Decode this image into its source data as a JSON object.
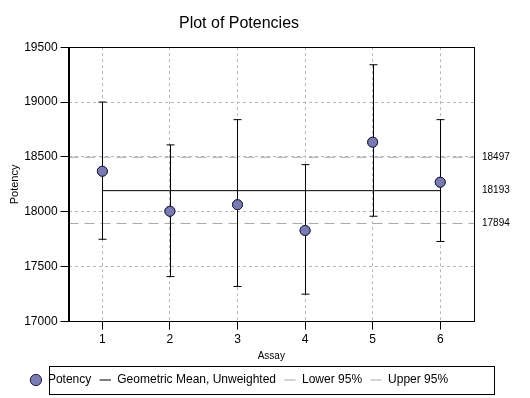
{
  "chart_data": {
    "type": "scatter",
    "title": "Plot of Potencies",
    "x_label": "Assay",
    "y_label": "Potency",
    "x": [
      1,
      2,
      3,
      4,
      5,
      6
    ],
    "series": [
      {
        "name": "Potency",
        "color": "#7b7bb4",
        "marker": "circle",
        "values": [
          18370,
          18005,
          18065,
          17830,
          18635,
          18270
        ],
        "error_bars": {
          "lower": [
            17750,
            17410,
            17320,
            17250,
            17960,
            17730
          ],
          "upper": [
            19000,
            18610,
            18840,
            18430,
            19340,
            18840
          ]
        }
      }
    ],
    "reference_lines": [
      {
        "name": "Geometric Mean, Unweighted",
        "value": 18193,
        "color": "#000000",
        "line_style": "solid",
        "data_labels": true
      },
      {
        "name": "Lower 95%",
        "value": 17894,
        "color": "#a8a8a8",
        "line_style": "dashed",
        "data_labels": true
      },
      {
        "name": "Upper 95%",
        "value": 18497,
        "color": "#a8a8a8",
        "line_style": "dashed",
        "data_labels": true
      }
    ],
    "xlim": [
      0.5,
      6.5
    ],
    "xticks": [
      1,
      2,
      3,
      4,
      5,
      6
    ],
    "ylim": [
      17000,
      19500
    ],
    "yticks": [
      17000,
      17500,
      18000,
      18500,
      19000,
      19500
    ],
    "grid": true,
    "legend": "bottom"
  }
}
